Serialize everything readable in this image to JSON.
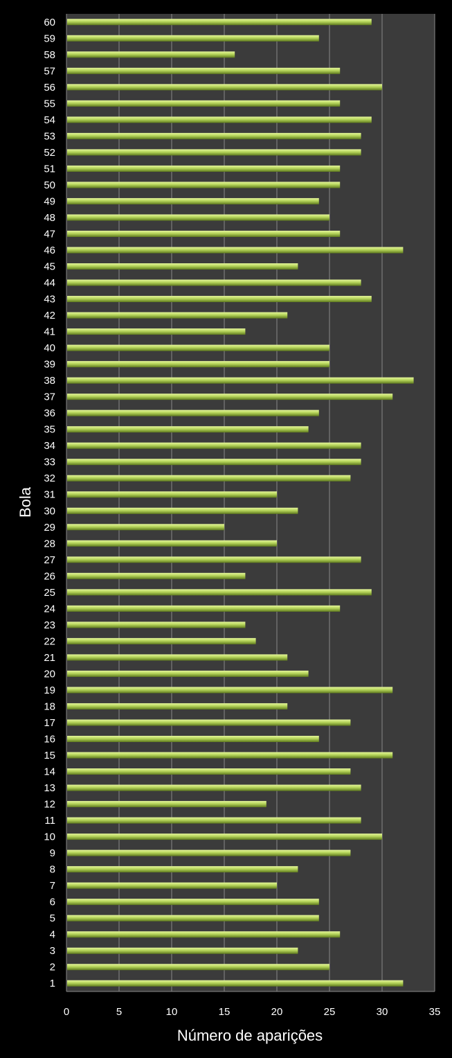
{
  "chart_data": {
    "type": "bar",
    "orientation": "horizontal",
    "title": "",
    "xlabel": "Número de aparições",
    "ylabel": "Bola",
    "xlim": [
      0,
      35
    ],
    "xticks": [
      0,
      5,
      10,
      15,
      20,
      25,
      30,
      35
    ],
    "grid": true,
    "legend": "none",
    "colors": {
      "background": "#000000",
      "plot_area": "#3b3b3b",
      "bar": "#b5d45a",
      "grid": "#8a8a8a",
      "text": "#ffffff"
    },
    "categories": [
      "1",
      "2",
      "3",
      "4",
      "5",
      "6",
      "7",
      "8",
      "9",
      "10",
      "11",
      "12",
      "13",
      "14",
      "15",
      "16",
      "17",
      "18",
      "19",
      "20",
      "21",
      "22",
      "23",
      "24",
      "25",
      "26",
      "27",
      "28",
      "29",
      "30",
      "31",
      "32",
      "33",
      "34",
      "35",
      "36",
      "37",
      "38",
      "39",
      "40",
      "41",
      "42",
      "43",
      "44",
      "45",
      "46",
      "47",
      "48",
      "49",
      "50",
      "51",
      "52",
      "53",
      "54",
      "55",
      "56",
      "57",
      "58",
      "59",
      "60"
    ],
    "values": [
      32,
      25,
      22,
      26,
      24,
      24,
      20,
      22,
      27,
      30,
      28,
      19,
      28,
      27,
      31,
      24,
      27,
      21,
      31,
      23,
      21,
      18,
      17,
      26,
      29,
      17,
      28,
      20,
      15,
      22,
      20,
      27,
      28,
      28,
      23,
      24,
      31,
      33,
      25,
      25,
      17,
      21,
      29,
      28,
      22,
      32,
      26,
      25,
      24,
      26,
      26,
      28,
      28,
      29,
      26,
      30,
      26,
      16,
      24,
      29
    ]
  }
}
